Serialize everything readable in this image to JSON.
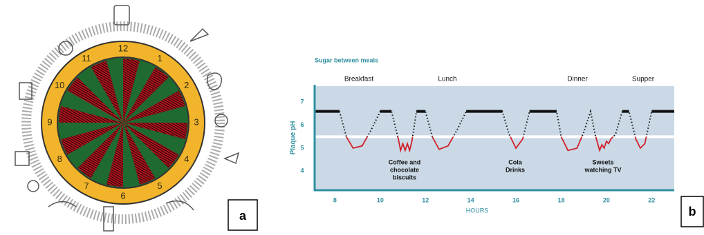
{
  "diagram_a": {
    "clock_numbers": [
      "12",
      "1",
      "2",
      "3",
      "4",
      "5",
      "6",
      "7",
      "8",
      "9",
      "10",
      "11"
    ],
    "label": "a"
  },
  "chart_data": {
    "type": "line",
    "title": "Sugar between meals",
    "meals": [
      "Breakfast",
      "Lunch",
      "Dinner",
      "Supper"
    ],
    "annotations": [
      [
        "Coffee and",
        "chocolate",
        "biscuits"
      ],
      [
        "Cola",
        "Drinks"
      ],
      [
        "Sweets",
        "watching TV"
      ]
    ],
    "y_label": "Plaque pH",
    "x_label": "HOURS",
    "label": "b",
    "xlim": [
      7.1,
      23
    ],
    "ylim": [
      3.2,
      7.7
    ],
    "xticks": [
      8,
      10,
      12,
      14,
      16,
      18,
      20,
      22
    ],
    "yticks": [
      4,
      5,
      6,
      7
    ],
    "threshold": 5.5,
    "series": [
      {
        "color": "#d0202a",
        "x": [
          7.1,
          8.2,
          8.5,
          8.8,
          9.2,
          9.6,
          10.0,
          10.5,
          10.8,
          10.9,
          11.0,
          11.1,
          11.2,
          11.3,
          11.4,
          11.6,
          12.0,
          12.3,
          12.6,
          13.0,
          13.4,
          13.8,
          15.4,
          15.7,
          16.0,
          16.3,
          16.6,
          17.8,
          18.0,
          18.3,
          18.7,
          19.0,
          19.3,
          19.5,
          19.7,
          19.8,
          19.9,
          20.0,
          20.1,
          20.2,
          20.4,
          20.7,
          21.0,
          21.3,
          21.5,
          21.7,
          22.0,
          23.0
        ],
        "values": [
          6.6,
          6.6,
          5.5,
          5.0,
          5.1,
          5.8,
          6.6,
          6.6,
          5.4,
          4.9,
          5.2,
          4.9,
          5.2,
          4.9,
          5.3,
          6.6,
          6.6,
          5.5,
          4.95,
          5.1,
          5.8,
          6.6,
          6.6,
          5.6,
          5.0,
          5.4,
          6.6,
          6.6,
          5.5,
          4.9,
          5.0,
          5.7,
          6.6,
          5.6,
          4.9,
          5.15,
          5.0,
          5.3,
          5.2,
          5.4,
          5.6,
          6.6,
          6.6,
          5.4,
          5.0,
          5.2,
          6.6,
          6.6
        ]
      }
    ]
  }
}
